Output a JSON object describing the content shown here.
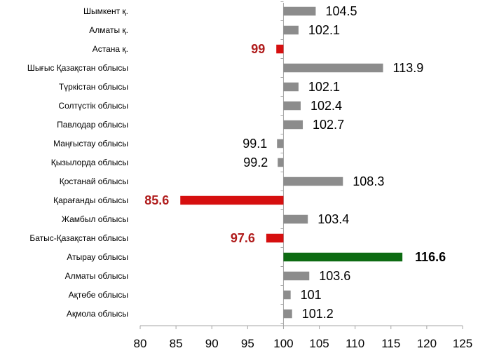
{
  "chart_data": {
    "type": "bar",
    "orientation": "horizontal",
    "title": "",
    "xlabel": "",
    "ylabel": "",
    "xlim": [
      80,
      125
    ],
    "xticks": [
      80,
      85,
      90,
      95,
      100,
      105,
      110,
      115,
      120,
      125
    ],
    "baseline": 100,
    "grid": false,
    "categories": [
      "Шымкент қ.",
      "Алматы қ.",
      "Астана қ.",
      "Шығыс Қазақстан облысы",
      "Түркістан облысы",
      "Солтүстік облысы",
      "Павлодар облысы",
      "Маңғыстау облысы",
      "Қызылорда облысы",
      "Қостанай облысы",
      "Қарағанды облысы",
      "Жамбыл облысы",
      "Батыс-Қазақстан облысы",
      "Атырау облысы",
      "Алматы облысы",
      "Ақтөбе облысы",
      "Ақмола облысы"
    ],
    "values": [
      104.5,
      102.1,
      99,
      113.9,
      102.1,
      102.4,
      102.7,
      99.1,
      99.2,
      108.3,
      85.6,
      103.4,
      97.6,
      116.6,
      103.6,
      101,
      101.2
    ],
    "value_labels": [
      "104.5",
      "102.1",
      "99",
      "113.9",
      "102.1",
      "102.4",
      "102.7",
      "99.1",
      "99.2",
      "108.3",
      "85.6",
      "103.4",
      "97.6",
      "116.6",
      "103.6",
      "101",
      "101.2"
    ],
    "highlight": [
      "default",
      "default",
      "low",
      "default",
      "default",
      "default",
      "default",
      "default",
      "default",
      "default",
      "low",
      "default",
      "low",
      "high",
      "default",
      "default",
      "default"
    ],
    "colors": {
      "default": "#8c8c8c",
      "low": "#d60f0f",
      "high": "#0d6b12",
      "axis": "#a6a6a6"
    }
  }
}
